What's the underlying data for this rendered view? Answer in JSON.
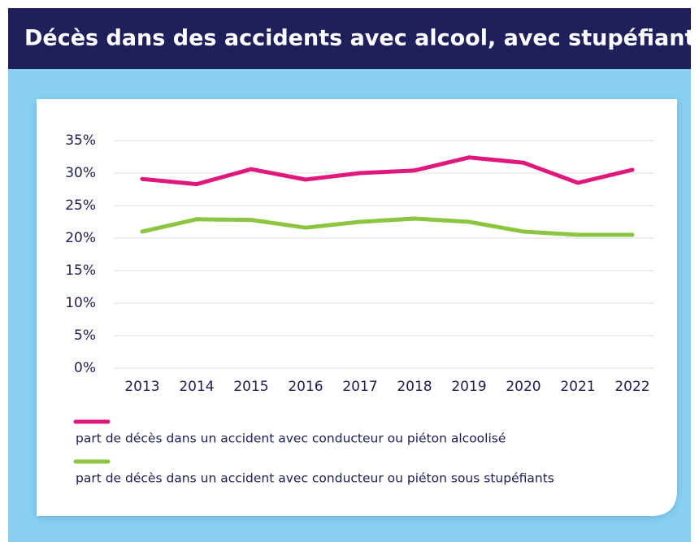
{
  "chart_data": {
    "type": "line",
    "title": "Décès dans des accidents avec alcool, avec stupéfiants",
    "categories": [
      "2013",
      "2014",
      "2015",
      "2016",
      "2017",
      "2018",
      "2019",
      "2020",
      "2021",
      "2022"
    ],
    "series": [
      {
        "name": "part de décès dans un accident avec conducteur ou piéton alcoolisé",
        "color": "#e0187c",
        "values": [
          29.1,
          28.3,
          30.6,
          29.0,
          30.0,
          30.4,
          32.4,
          31.6,
          28.5,
          30.5
        ]
      },
      {
        "name": "part de décès dans un accident avec conducteur ou piéton sous stupéfiants",
        "color": "#8cc540",
        "values": [
          21.0,
          22.9,
          22.8,
          21.6,
          22.5,
          23.0,
          22.5,
          21.0,
          20.5,
          20.5
        ]
      }
    ],
    "ylim": [
      0,
      35
    ],
    "yticks": [
      {
        "value": 0,
        "label": "0%"
      },
      {
        "value": 5,
        "label": "5%"
      },
      {
        "value": 10,
        "label": "10%"
      },
      {
        "value": 15,
        "label": "15%"
      },
      {
        "value": 20,
        "label": "20%"
      },
      {
        "value": 25,
        "label": "25%"
      },
      {
        "value": 30,
        "label": "30%"
      },
      {
        "value": 35,
        "label": "35%"
      }
    ],
    "grid": true
  }
}
